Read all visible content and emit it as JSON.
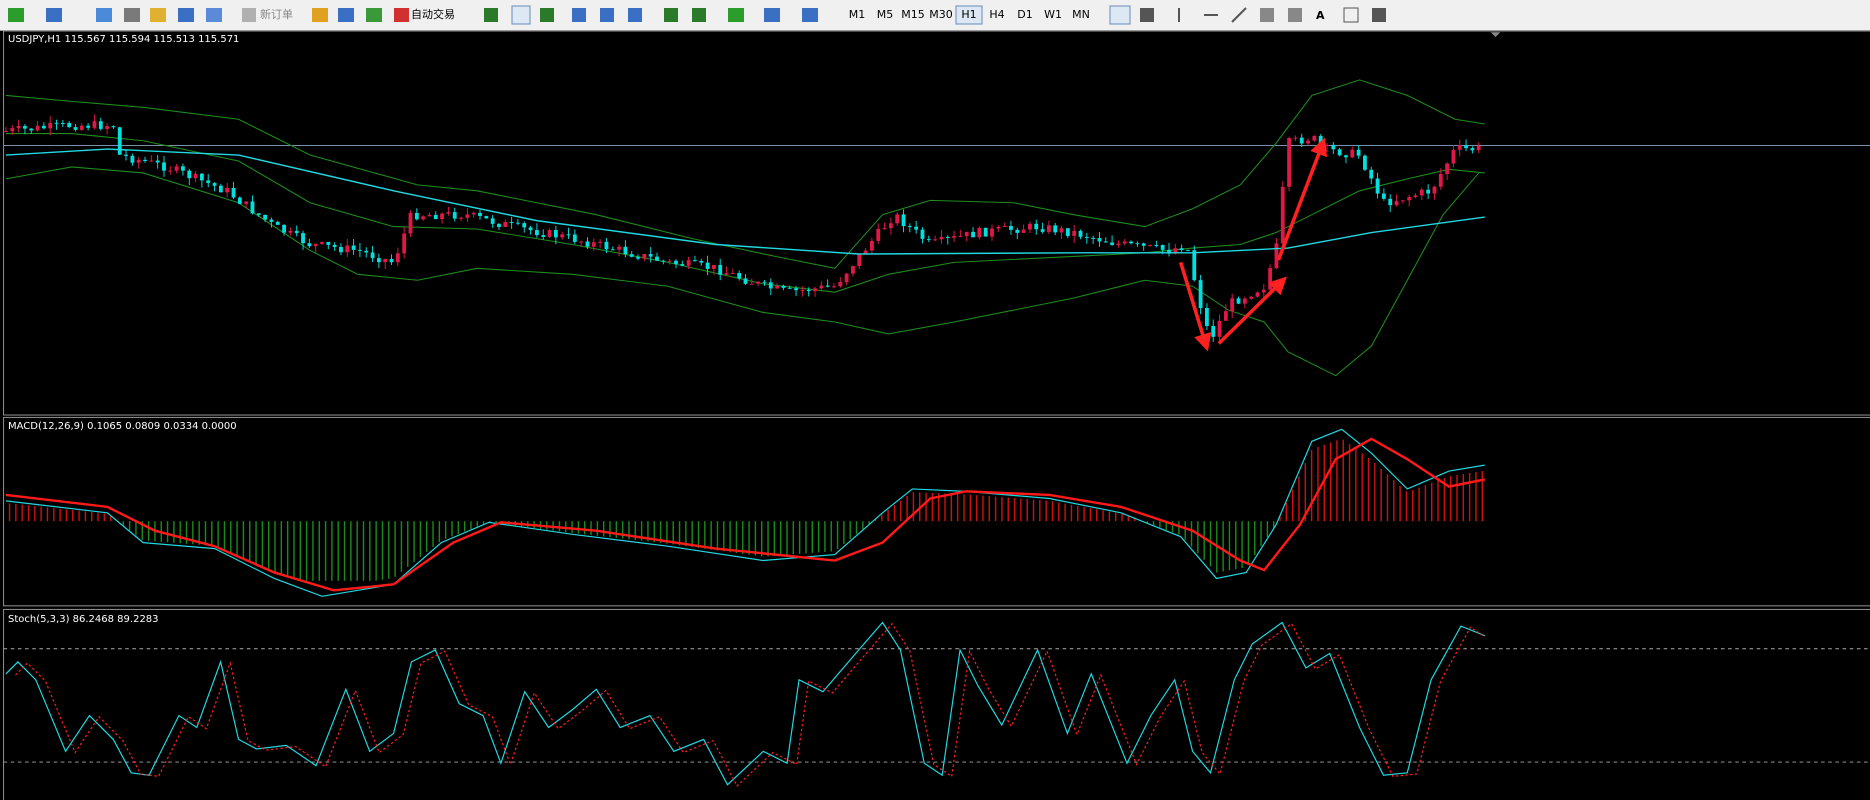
{
  "toolbar": {
    "new_order": "新订单",
    "auto_trading": "自动交易",
    "timeframes": [
      "M1",
      "M5",
      "M15",
      "M30",
      "H1",
      "H4",
      "D1",
      "W1",
      "MN"
    ],
    "selected_timeframe": "H1"
  },
  "panels": {
    "price": "USDJPY,H1  115.567 115.594 115.513 115.571",
    "macd": "MACD(12,26,9) 0.1065 0.0809 0.0334 0.0000",
    "stoch": "Stoch(5,3,3) 86.2468 89.2283"
  }
}
